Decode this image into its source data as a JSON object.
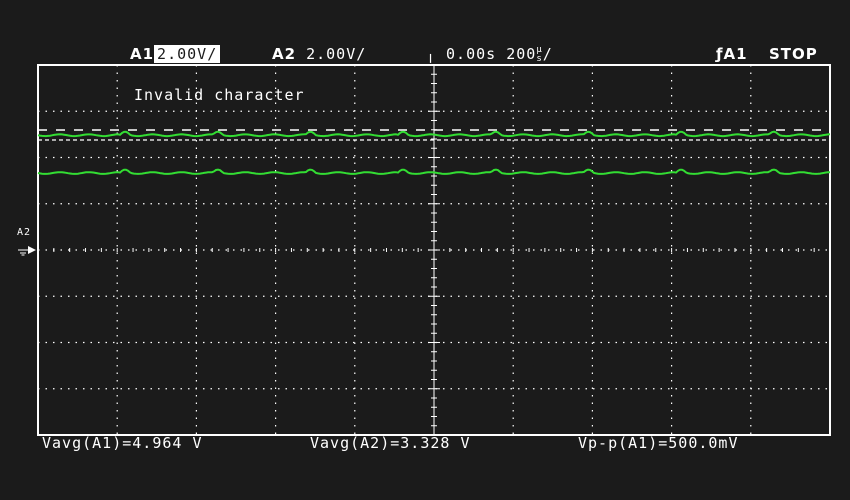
{
  "header": {
    "ch1_label": "A1",
    "ch1_scale": "2.00V/",
    "ch2_label": "A2",
    "ch2_scale": "2.00V/",
    "timebase": "0.00s 200",
    "timebase_unit_top": "μ",
    "timebase_unit_bottom": "s",
    "timebase_suffix": "/",
    "trigger": "A1",
    "run_state": "STOP"
  },
  "screen": {
    "message": "Invalid character",
    "ch2_marker_label": "A2"
  },
  "measurements": [
    {
      "label": "Vavg(A1)=4.964 V"
    },
    {
      "label": "Vavg(A2)=3.328 V"
    },
    {
      "label": "Vp-p(A1)=500.0mV"
    }
  ],
  "traces": {
    "color": "#33dd33",
    "ch1_level_v": 4.964,
    "ch2_level_v": 3.328,
    "ripple_vpp": 0.5
  },
  "colors": {
    "background": "#1b1b1b",
    "foreground": "#ffffff",
    "trace": "#33dd33"
  }
}
